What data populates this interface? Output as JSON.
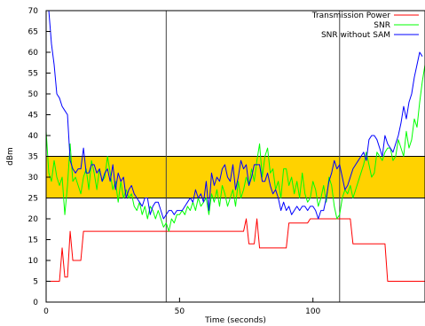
{
  "chart_data": {
    "type": "line",
    "xlabel": "Time (seconds)",
    "ylabel": "dBm",
    "xlim": [
      0,
      142
    ],
    "ylim": [
      0,
      70
    ],
    "x_ticks": [
      0,
      50,
      100
    ],
    "y_ticks": [
      0,
      5,
      10,
      15,
      20,
      25,
      30,
      35,
      40,
      45,
      50,
      55,
      60,
      65,
      70
    ],
    "grid": false,
    "legend_position": "top-right",
    "band": {
      "from": 25,
      "to": 35,
      "color": "#ffd200"
    },
    "vertical_lines": [
      45,
      110
    ],
    "series": [
      {
        "name": "Transmission Power",
        "color": "#ff0000",
        "points": [
          [
            0,
            5
          ],
          [
            5,
            5
          ],
          [
            6,
            13
          ],
          [
            7,
            6
          ],
          [
            8,
            6
          ],
          [
            9,
            17
          ],
          [
            10,
            10
          ],
          [
            13,
            10
          ],
          [
            14,
            17
          ],
          [
            74,
            17
          ],
          [
            75,
            20
          ],
          [
            76,
            14
          ],
          [
            78,
            14
          ],
          [
            79,
            20
          ],
          [
            80,
            13
          ],
          [
            90,
            13
          ],
          [
            91,
            19
          ],
          [
            98,
            19
          ],
          [
            99,
            20
          ],
          [
            114,
            20
          ],
          [
            115,
            14
          ],
          [
            127,
            14
          ],
          [
            128,
            5
          ],
          [
            142,
            5
          ]
        ]
      },
      {
        "name": "SNR",
        "color": "#00ff00",
        "points": [
          [
            0,
            41
          ],
          [
            1,
            31
          ],
          [
            2,
            29
          ],
          [
            3,
            34
          ],
          [
            4,
            30
          ],
          [
            5,
            28
          ],
          [
            6,
            30
          ],
          [
            7,
            21
          ],
          [
            8,
            28
          ],
          [
            9,
            38
          ],
          [
            10,
            29
          ],
          [
            11,
            30
          ],
          [
            12,
            28
          ],
          [
            13,
            26
          ],
          [
            14,
            30
          ],
          [
            15,
            32
          ],
          [
            16,
            27
          ],
          [
            17,
            34
          ],
          [
            18,
            31
          ],
          [
            19,
            27
          ],
          [
            20,
            32
          ],
          [
            21,
            29
          ],
          [
            22,
            30
          ],
          [
            23,
            35
          ],
          [
            24,
            31
          ],
          [
            25,
            27
          ],
          [
            26,
            29
          ],
          [
            27,
            24
          ],
          [
            28,
            29
          ],
          [
            29,
            25
          ],
          [
            30,
            27
          ],
          [
            31,
            25
          ],
          [
            32,
            26
          ],
          [
            33,
            23
          ],
          [
            34,
            22
          ],
          [
            35,
            24
          ],
          [
            36,
            21
          ],
          [
            37,
            23
          ],
          [
            38,
            20
          ],
          [
            39,
            23
          ],
          [
            40,
            22
          ],
          [
            41,
            20
          ],
          [
            42,
            22
          ],
          [
            43,
            20
          ],
          [
            44,
            18
          ],
          [
            45,
            19
          ],
          [
            46,
            17
          ],
          [
            47,
            20
          ],
          [
            48,
            19
          ],
          [
            49,
            21
          ],
          [
            50,
            21
          ],
          [
            51,
            22
          ],
          [
            52,
            21
          ],
          [
            53,
            23
          ],
          [
            54,
            22
          ],
          [
            55,
            24
          ],
          [
            56,
            22
          ],
          [
            57,
            25
          ],
          [
            58,
            23
          ],
          [
            59,
            24
          ],
          [
            60,
            25
          ],
          [
            61,
            21
          ],
          [
            62,
            26
          ],
          [
            63,
            24
          ],
          [
            64,
            27
          ],
          [
            65,
            23
          ],
          [
            66,
            28
          ],
          [
            67,
            26
          ],
          [
            68,
            23
          ],
          [
            69,
            25
          ],
          [
            70,
            27
          ],
          [
            71,
            23
          ],
          [
            72,
            29
          ],
          [
            73,
            25
          ],
          [
            74,
            27
          ],
          [
            75,
            30
          ],
          [
            76,
            28
          ],
          [
            77,
            32
          ],
          [
            78,
            29
          ],
          [
            79,
            34
          ],
          [
            80,
            38
          ],
          [
            81,
            30
          ],
          [
            82,
            35
          ],
          [
            83,
            37
          ],
          [
            84,
            31
          ],
          [
            85,
            32
          ],
          [
            86,
            27
          ],
          [
            87,
            29
          ],
          [
            88,
            25
          ],
          [
            89,
            32
          ],
          [
            90,
            32
          ],
          [
            91,
            28
          ],
          [
            92,
            30
          ],
          [
            93,
            26
          ],
          [
            94,
            29
          ],
          [
            95,
            25
          ],
          [
            96,
            31
          ],
          [
            97,
            26
          ],
          [
            98,
            24
          ],
          [
            99,
            25
          ],
          [
            100,
            29
          ],
          [
            101,
            27
          ],
          [
            102,
            23
          ],
          [
            103,
            25
          ],
          [
            104,
            28
          ],
          [
            105,
            24
          ],
          [
            106,
            30
          ],
          [
            107,
            28
          ],
          [
            108,
            23
          ],
          [
            109,
            20
          ],
          [
            110,
            21
          ],
          [
            111,
            25
          ],
          [
            112,
            27
          ],
          [
            113,
            26
          ],
          [
            114,
            28
          ],
          [
            115,
            25
          ],
          [
            116,
            27
          ],
          [
            117,
            29
          ],
          [
            118,
            31
          ],
          [
            119,
            33
          ],
          [
            120,
            36
          ],
          [
            121,
            33
          ],
          [
            122,
            30
          ],
          [
            123,
            31
          ],
          [
            124,
            36
          ],
          [
            125,
            35
          ],
          [
            126,
            34
          ],
          [
            127,
            36
          ],
          [
            128,
            37
          ],
          [
            129,
            37
          ],
          [
            130,
            34
          ],
          [
            131,
            35
          ],
          [
            132,
            39
          ],
          [
            133,
            37
          ],
          [
            134,
            35
          ],
          [
            135,
            41
          ],
          [
            136,
            37
          ],
          [
            137,
            39
          ],
          [
            138,
            44
          ],
          [
            139,
            42
          ],
          [
            140,
            48
          ],
          [
            141,
            53
          ],
          [
            142,
            57
          ]
        ]
      },
      {
        "name": "SNR without SAM",
        "color": "#0000ff",
        "points": [
          [
            0,
            70
          ],
          [
            1,
            70
          ],
          [
            2,
            62
          ],
          [
            3,
            57
          ],
          [
            4,
            50
          ],
          [
            5,
            49
          ],
          [
            6,
            47
          ],
          [
            7,
            46
          ],
          [
            8,
            45
          ],
          [
            9,
            34
          ],
          [
            10,
            32
          ],
          [
            11,
            31
          ],
          [
            12,
            32
          ],
          [
            13,
            32
          ],
          [
            14,
            37
          ],
          [
            15,
            31
          ],
          [
            16,
            31
          ],
          [
            17,
            33
          ],
          [
            18,
            33
          ],
          [
            19,
            31
          ],
          [
            20,
            32
          ],
          [
            21,
            29
          ],
          [
            22,
            31
          ],
          [
            23,
            32
          ],
          [
            24,
            29
          ],
          [
            25,
            33
          ],
          [
            26,
            27
          ],
          [
            27,
            31
          ],
          [
            28,
            29
          ],
          [
            29,
            30
          ],
          [
            30,
            25
          ],
          [
            31,
            27
          ],
          [
            32,
            28
          ],
          [
            33,
            26
          ],
          [
            34,
            25
          ],
          [
            35,
            24
          ],
          [
            36,
            23
          ],
          [
            37,
            25
          ],
          [
            38,
            25
          ],
          [
            39,
            21
          ],
          [
            40,
            23
          ],
          [
            41,
            24
          ],
          [
            42,
            24
          ],
          [
            43,
            22
          ],
          [
            44,
            20
          ],
          [
            45,
            21
          ],
          [
            46,
            22
          ],
          [
            47,
            22
          ],
          [
            48,
            21
          ],
          [
            49,
            22
          ],
          [
            50,
            22
          ],
          [
            51,
            22
          ],
          [
            52,
            23
          ],
          [
            53,
            24
          ],
          [
            54,
            25
          ],
          [
            55,
            24
          ],
          [
            56,
            27
          ],
          [
            57,
            25
          ],
          [
            58,
            26
          ],
          [
            59,
            24
          ],
          [
            60,
            29
          ],
          [
            61,
            22
          ],
          [
            62,
            31
          ],
          [
            63,
            28
          ],
          [
            64,
            30
          ],
          [
            65,
            29
          ],
          [
            66,
            32
          ],
          [
            67,
            33
          ],
          [
            68,
            30
          ],
          [
            69,
            29
          ],
          [
            70,
            33
          ],
          [
            71,
            27
          ],
          [
            72,
            30
          ],
          [
            73,
            34
          ],
          [
            74,
            32
          ],
          [
            75,
            33
          ],
          [
            76,
            28
          ],
          [
            77,
            30
          ],
          [
            78,
            33
          ],
          [
            79,
            33
          ],
          [
            80,
            33
          ],
          [
            81,
            29
          ],
          [
            82,
            29
          ],
          [
            83,
            31
          ],
          [
            84,
            28
          ],
          [
            85,
            26
          ],
          [
            86,
            27
          ],
          [
            87,
            25
          ],
          [
            88,
            22
          ],
          [
            89,
            24
          ],
          [
            90,
            22
          ],
          [
            91,
            23
          ],
          [
            92,
            21
          ],
          [
            93,
            22
          ],
          [
            94,
            23
          ],
          [
            95,
            22
          ],
          [
            96,
            23
          ],
          [
            97,
            23
          ],
          [
            98,
            22
          ],
          [
            99,
            23
          ],
          [
            100,
            23
          ],
          [
            101,
            22
          ],
          [
            102,
            20
          ],
          [
            103,
            22
          ],
          [
            104,
            22
          ],
          [
            105,
            25
          ],
          [
            106,
            29
          ],
          [
            107,
            31
          ],
          [
            108,
            34
          ],
          [
            109,
            32
          ],
          [
            110,
            33
          ],
          [
            111,
            30
          ],
          [
            112,
            27
          ],
          [
            113,
            28
          ],
          [
            114,
            30
          ],
          [
            115,
            32
          ],
          [
            116,
            33
          ],
          [
            117,
            34
          ],
          [
            118,
            35
          ],
          [
            119,
            36
          ],
          [
            120,
            34
          ],
          [
            121,
            39
          ],
          [
            122,
            40
          ],
          [
            123,
            40
          ],
          [
            124,
            39
          ],
          [
            125,
            37
          ],
          [
            126,
            35
          ],
          [
            127,
            40
          ],
          [
            128,
            38
          ],
          [
            129,
            37
          ],
          [
            130,
            36
          ],
          [
            131,
            38
          ],
          [
            132,
            40
          ],
          [
            133,
            43
          ],
          [
            134,
            47
          ],
          [
            135,
            44
          ],
          [
            136,
            48
          ],
          [
            137,
            50
          ],
          [
            138,
            54
          ],
          [
            139,
            57
          ],
          [
            140,
            60
          ],
          [
            141,
            59
          ]
        ]
      }
    ]
  }
}
